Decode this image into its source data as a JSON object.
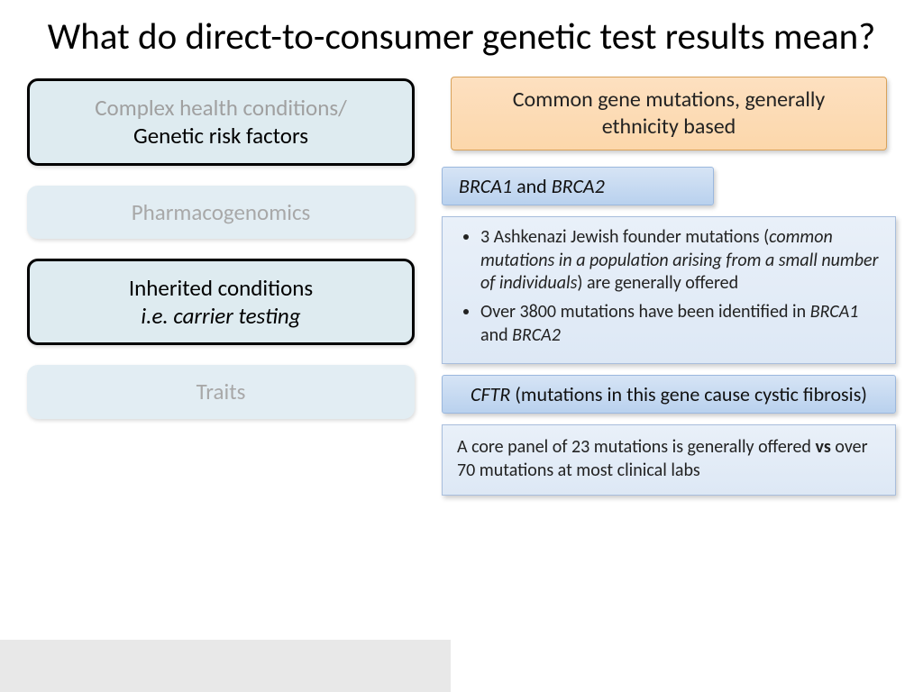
{
  "title": "What do direct-to-consumer genetic test results mean?",
  "colors": {
    "tab_active_bg": "#deebf0",
    "tab_inactive_bg": "#e2edf3",
    "tab_inactive_text": "#a8a8a8",
    "tab_border": "#000000",
    "callout_bg_top": "#fde0c0",
    "callout_bg_bottom": "#fcd7ab",
    "callout_border": "#d9a25a",
    "box_bg_top": "#e9f0f9",
    "box_bg_bottom": "#dde8f5",
    "box_border": "#a8bedd",
    "footer_bg": "#e8e8e8",
    "background": "#ffffff"
  },
  "typography": {
    "title_fontsize": 41,
    "tab_fontsize": 25,
    "callout_fontsize": 24,
    "subheader_fontsize": 22,
    "body_fontsize": 20,
    "font_family": "Calibri"
  },
  "left_tabs": [
    {
      "line1": "Complex health conditions/",
      "line2": "Genetic risk factors",
      "active": true,
      "line1_muted": true
    },
    {
      "line1": "Pharmacogenomics",
      "line2": "",
      "active": false
    },
    {
      "line1": "Inherited conditions",
      "line2": "i.e. carrier testing",
      "active": true,
      "line2_italic": true
    },
    {
      "line1": "Traits",
      "line2": "",
      "active": false
    }
  ],
  "callout": "Common gene mutations, generally ethnicity based",
  "sections": [
    {
      "header_html": "<em class='gene'>BRCA1</em> <span class='roman'>and</span> <em class='gene'>BRCA2</em>",
      "header_align": "left",
      "body_type": "bullets",
      "bullets_html": [
        "3 Ashkenazi Jewish founder mutations (<em>common mutations in a population arising from a small number of individuals</em>) are generally offered",
        "Over 3800 mutations have been identified in <em class='gene'>BRCA1</em> and <em class='gene'>BRCA2</em>"
      ]
    },
    {
      "header_html": "<em class='gene'>CFTR</em> <span class='roman'>(mutations in this gene cause cystic fibrosis)</span>",
      "header_align": "center",
      "body_type": "plain",
      "body_html": "A core panel of 23 mutations is generally offered <strong class='vs'>vs</strong> over 70 mutations at most clinical labs"
    }
  ]
}
